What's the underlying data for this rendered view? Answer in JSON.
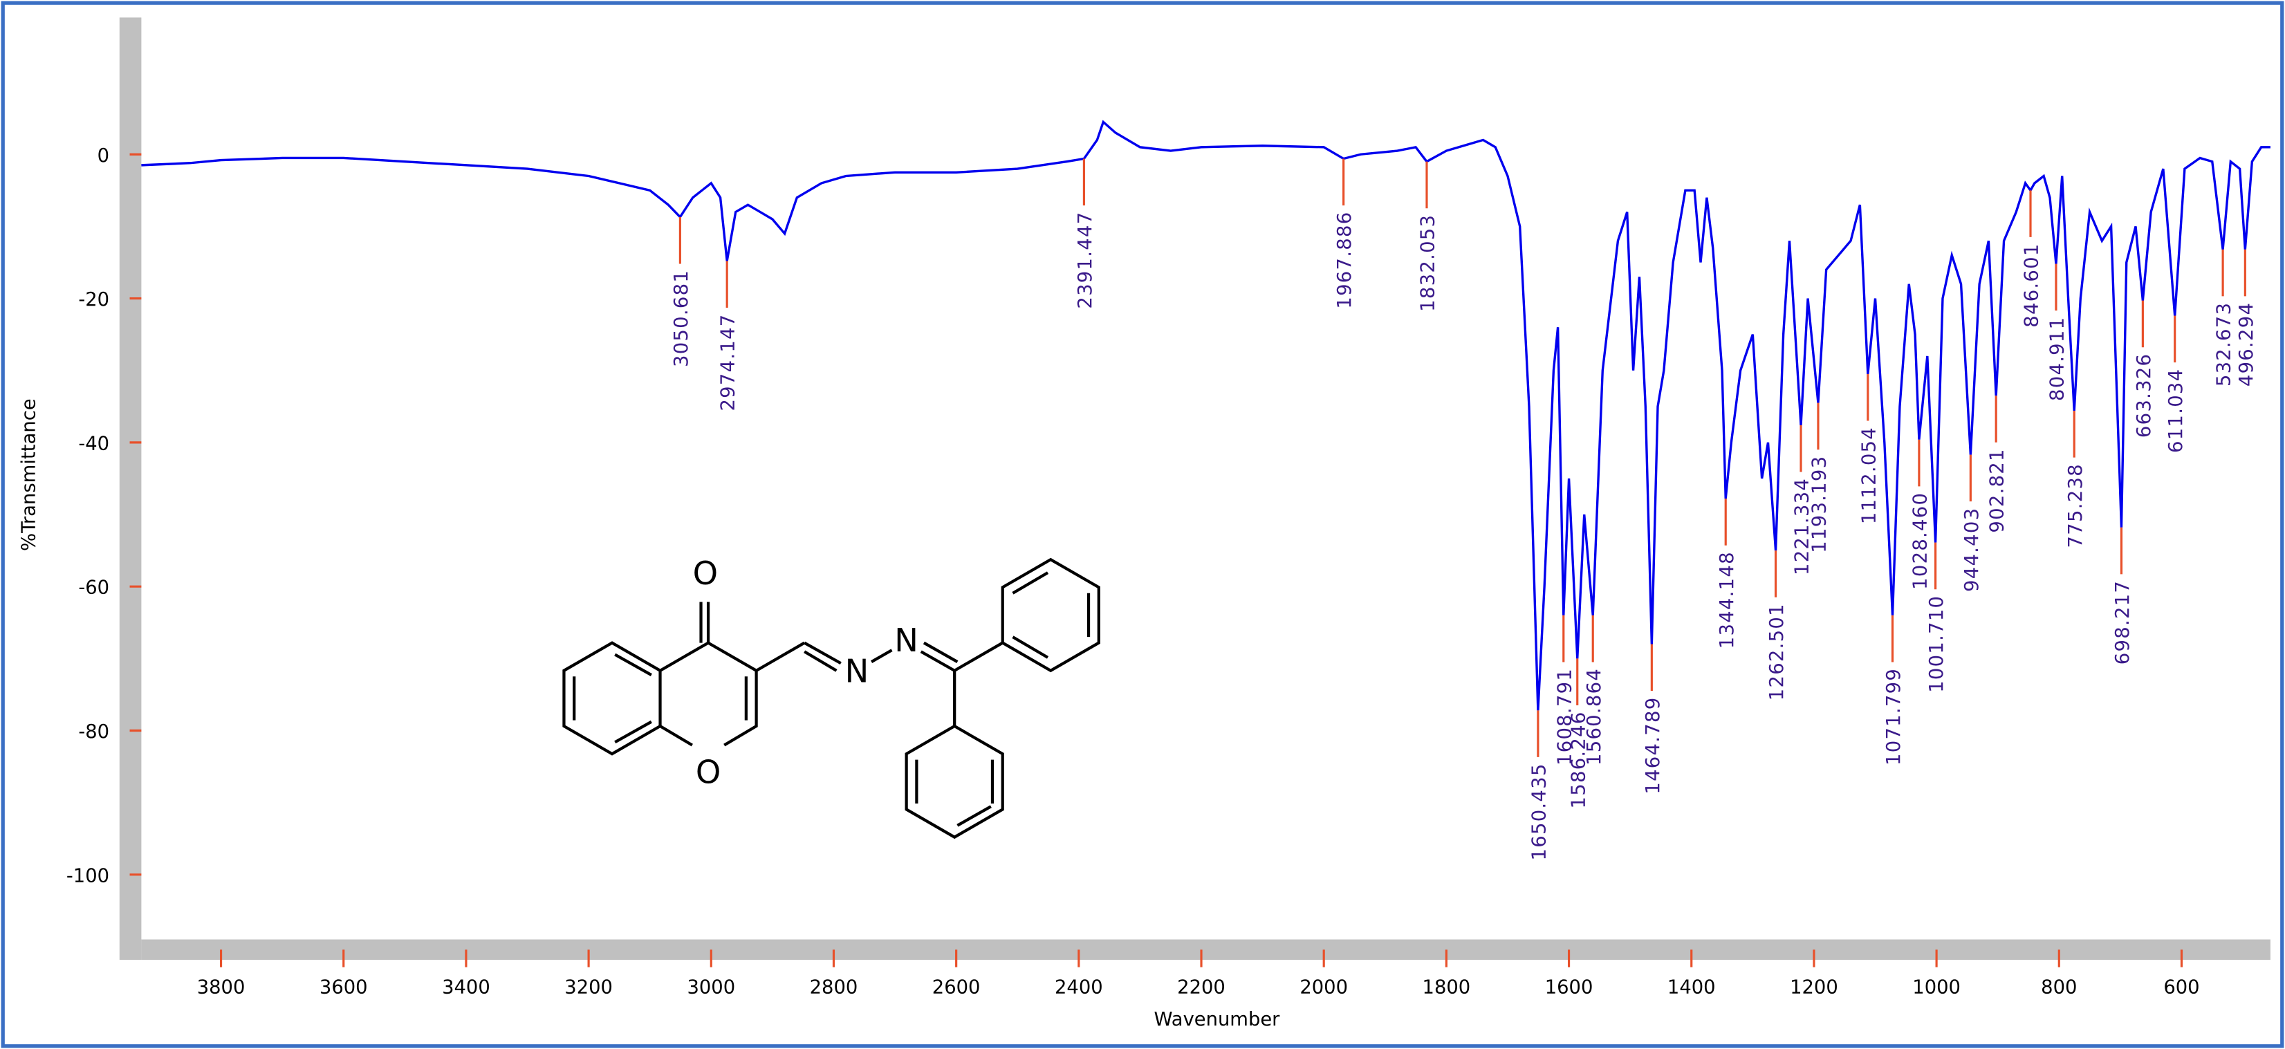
{
  "chart_data": {
    "type": "line",
    "x_label": "Wavenumber",
    "y_label": "%Transmittance",
    "xlim": [
      3930,
      455
    ],
    "ylim": [
      -109,
      19
    ],
    "xticks": [
      3800,
      3600,
      3400,
      3200,
      3000,
      2800,
      2600,
      2400,
      2200,
      2000,
      1800,
      1600,
      1400,
      1200,
      1000,
      800,
      600
    ],
    "yticks": [
      0,
      -20,
      -40,
      -60,
      -80,
      -100
    ],
    "series": [
      {
        "color": "#0000ee",
        "x": [
          3930,
          3850,
          3800,
          3700,
          3600,
          3500,
          3400,
          3300,
          3200,
          3150,
          3100,
          3070,
          3050.681,
          3030,
          3000,
          2985,
          2974.147,
          2960,
          2940,
          2920,
          2900,
          2880,
          2860,
          2820,
          2780,
          2700,
          2600,
          2500,
          2420,
          2391.447,
          2370,
          2360,
          2340,
          2300,
          2250,
          2200,
          2100,
          2000,
          1967.886,
          1940,
          1880,
          1850,
          1832.053,
          1800,
          1760,
          1740,
          1720,
          1700,
          1680,
          1665,
          1650.435,
          1640,
          1625,
          1618,
          1608.791,
          1600,
          1586.246,
          1575,
          1560.864,
          1545,
          1520,
          1505,
          1495,
          1485,
          1475,
          1464.789,
          1455,
          1445,
          1430,
          1410,
          1395,
          1385,
          1375,
          1365,
          1350,
          1344.148,
          1335,
          1320,
          1300,
          1285,
          1275,
          1262.501,
          1250,
          1240,
          1221.334,
          1210,
          1193.193,
          1180,
          1160,
          1140,
          1125,
          1112.054,
          1100,
          1085,
          1071.799,
          1060,
          1045,
          1035,
          1028.46,
          1015,
          1001.71,
          990,
          975,
          960,
          944.403,
          930,
          915,
          902.821,
          890,
          870,
          855,
          846.601,
          840,
          825,
          815,
          804.911,
          795,
          785,
          775.238,
          765,
          750,
          730,
          715,
          698.217,
          690,
          675,
          663.326,
          650,
          630,
          611.034,
          595,
          570,
          550,
          532.673,
          520,
          505,
          496.294,
          485,
          470,
          455
        ],
        "values": [
          -1.5,
          -1.2,
          -0.8,
          -0.5,
          -0.5,
          -1,
          -1.5,
          -2,
          -3,
          -4,
          -5,
          -7,
          -8.7,
          -6,
          -4,
          -6,
          -14.8,
          -8,
          -7,
          -8,
          -9,
          -11,
          -6,
          -4,
          -3,
          -2.5,
          -2.5,
          -2,
          -1,
          -0.6,
          2,
          4.5,
          3,
          1,
          0.5,
          1,
          1.2,
          1,
          -0.6,
          0,
          0.5,
          1,
          -1,
          0.5,
          1.5,
          2,
          1,
          -3,
          -10,
          -35,
          -77.2,
          -60,
          -30,
          -24,
          -64,
          -45,
          -70,
          -50,
          -64,
          -30,
          -12,
          -8,
          -30,
          -17,
          -35,
          -68,
          -35,
          -30,
          -15,
          -5,
          -5,
          -15,
          -6,
          -13,
          -30,
          -47.8,
          -40,
          -30,
          -25,
          -45,
          -40,
          -55,
          -25,
          -12,
          -37.6,
          -20,
          -34.5,
          -16,
          -14,
          -12,
          -7,
          -30.5,
          -20,
          -40,
          -64,
          -35,
          -18,
          -25,
          -39.6,
          -28,
          -53.9,
          -20,
          -14,
          -18,
          -41.7,
          -18,
          -12,
          -33.5,
          -12,
          -8,
          -4,
          -5,
          -4,
          -3,
          -6,
          -15.2,
          -3,
          -20,
          -35.6,
          -20,
          -8,
          -12,
          -10,
          -51.8,
          -15,
          -10,
          -20.3,
          -8,
          -2,
          -22.4,
          -2,
          -0.5,
          -1,
          -13.2,
          -1,
          -2,
          -13.2,
          -1,
          1,
          1
        ]
      }
    ],
    "peaks": {
      "color": "#e8502a",
      "x": [
        3050.681,
        2974.147,
        2391.447,
        1967.886,
        1832.053,
        1650.435,
        1608.791,
        1586.246,
        1560.864,
        1464.789,
        1344.148,
        1262.501,
        1221.334,
        1193.193,
        1112.054,
        1071.799,
        1028.46,
        1001.71,
        944.403,
        902.821,
        846.601,
        804.911,
        775.238,
        698.217,
        663.326,
        611.034,
        532.673,
        496.294
      ],
      "y": [
        -8.7,
        -14.8,
        -0.6,
        -0.6,
        -1,
        -77.2,
        -64,
        -70,
        -64,
        -68,
        -47.8,
        -55,
        -37.6,
        -34.5,
        -30.5,
        -64,
        -39.6,
        -53.9,
        -41.7,
        -33.5,
        -5,
        -15.2,
        -35.6,
        -51.8,
        -20.3,
        -22.4,
        -13.2,
        -13.2
      ],
      "labels": [
        "3050.681",
        "2974.147",
        "2391.447",
        "1967.886",
        "1832.053",
        "1650.435",
        "1608.791",
        "1586.246",
        "1560.864",
        "1464.789",
        "1344.148",
        "1262.501",
        "1221.334",
        "1193.193",
        "1112.054",
        "1071.799",
        "1028.460",
        "1001.710",
        "944.403",
        "902.821",
        "846.601",
        "804.911",
        "775.238",
        "698.217",
        "663.326",
        "611.034",
        "532.673",
        "496.294"
      ]
    },
    "structure": {
      "atoms": [
        "O",
        "O",
        "N",
        "N"
      ]
    }
  }
}
